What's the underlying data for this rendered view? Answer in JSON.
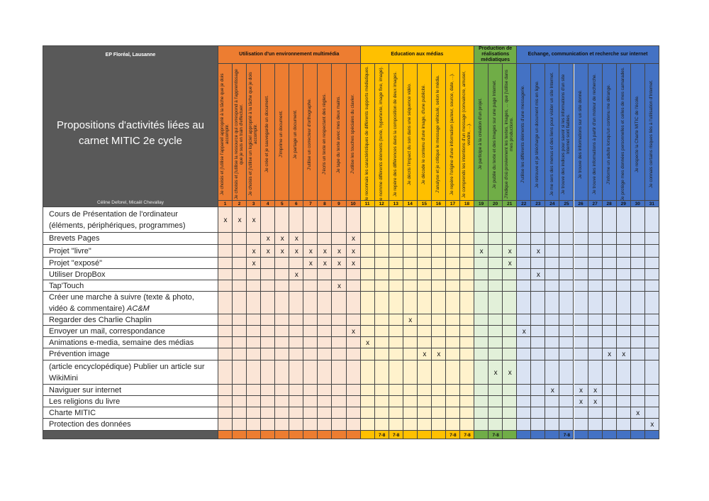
{
  "header": {
    "school": "EP Floréal, Lausanne",
    "title": "Propositions d'activités liées au carnet MITIC 2e cycle",
    "authors": "Céline Deforel, Micaël Chevallay"
  },
  "mark": "x",
  "groups": [
    {
      "label": "Utilisation d'un environnement multimédia",
      "color": "#ed7d31",
      "light_color": "#fbe5d6",
      "competences": [
        {
          "number": 1,
          "text": "Je choisis et j'utilise l'appareil approprié à la tâche que je dois accomplir."
        },
        {
          "number": 2,
          "text": "Je choisis et j'utilise la ressource qui correspond à l'apprentissage que je suis en train d'effectuer."
        },
        {
          "number": 3,
          "text": "Je choisis et j'utilise un logiciel approprié à la tâche que je dois accomplir."
        },
        {
          "number": 4,
          "text": "Je crée et je sauvegarde un document."
        },
        {
          "number": 5,
          "text": "J'imprime un document."
        },
        {
          "number": 6,
          "text": "Je partage un document."
        },
        {
          "number": 7,
          "text": "J'utilise un correcteur d'orthographe."
        },
        {
          "number": 8,
          "text": "J'écris un texte en respectant des règles."
        },
        {
          "number": 9,
          "text": "Je tape du texte avec mes deux mains."
        },
        {
          "number": 10,
          "text": "J'utilise les touches spéciales du clavier."
        }
      ]
    },
    {
      "label": "Education aux médias",
      "color": "#ffc000",
      "light_color": "#fff2cc",
      "competences": [
        {
          "number": 11,
          "text": "Je reconnais les caractéristiques de différents supports médiatiques."
        },
        {
          "number": 12,
          "text": "Je nomme différents éléments (texte, hypertexte, image fixe, image)."
        },
        {
          "number": 13,
          "text": "Je repère des différences dans la composition de deux images."
        },
        {
          "number": 14,
          "text": "Je décris l'impact du son dans une séquence vidéo."
        },
        {
          "number": 15,
          "text": "Je décode le contenu d'une image, d'une publicité."
        },
        {
          "number": 16,
          "text": "J'analyse et je critique le message véhiculé, selon le média."
        },
        {
          "number": 17,
          "text": "Je repère l'origine d'une information (auteur, source, date, ...)."
        },
        {
          "number": 18,
          "text": "Je comprends les intentions d'un message (convaincre, amuser, vendre, ...)."
        }
      ]
    },
    {
      "label": "Production de réalisations médiatiques",
      "color": "#70ad47",
      "light_color": "#e2f0d9",
      "competences": [
        {
          "number": 19,
          "text": "Je participe à la création d'un projet."
        },
        {
          "number": 20,
          "text": "Je publie du texte et des images sur une page Internet."
        },
        {
          "number": 21,
          "text": "J'indique d'où proviennent les textes, images, ... que j'utilise dans mes productions."
        }
      ]
    },
    {
      "label": "Echange, communication et recherche sur internet",
      "color": "#4472c4",
      "light_color": "#dae3f3",
      "competences": [
        {
          "number": 22,
          "text": "J'utilise les différents éléments d'une messagerie."
        },
        {
          "number": 23,
          "text": "Je retrouve et je télécharge un document mis en ligne."
        },
        {
          "number": 24,
          "text": "Je me sers des menus et des liens pour visiter un site Internet."
        },
        {
          "number": 25,
          "text": "Je trouve des indices pour savoir si les informations d'un site Internet sont fiables."
        },
        {
          "number": 26,
          "text": "Je trouve des informations sur un site donné."
        },
        {
          "number": 27,
          "text": "Je trouve des informations à partir d'un moteur de recherche."
        },
        {
          "number": 28,
          "text": "J'informe un adulte lorsqu'un contenu me dérange."
        },
        {
          "number": 29,
          "text": "Je protège mes données personnelles et celles de mes camarades."
        },
        {
          "number": 30,
          "text": "Je respecte la Charte MITIC de l'école."
        },
        {
          "number": 31,
          "text": "Je connais certains risques liés à l'utilisation d'Internet."
        }
      ]
    }
  ],
  "activities": [
    {
      "label": "Cours de Présentation de l'ordinateur (éléments, périphériques, programmes)",
      "checked": [
        1,
        2,
        3
      ]
    },
    {
      "label": "Brevets Pages",
      "checked": [
        4,
        5,
        6,
        10
      ]
    },
    {
      "label": "Projet \"livre\"",
      "checked": [
        3,
        4,
        5,
        6,
        7,
        8,
        9,
        10,
        19,
        21,
        23
      ]
    },
    {
      "label": "Projet \"exposé\"",
      "checked": [
        3,
        7,
        8,
        9,
        10,
        21
      ]
    },
    {
      "label": "Utiliser DropBox",
      "checked": [
        6,
        23
      ]
    },
    {
      "label": "Tap'Touch",
      "checked": [
        9
      ]
    },
    {
      "label": "Créer une marche à suivre (texte & photo, vidéo & commentaire)",
      "label_italic": "AC&M",
      "checked": []
    },
    {
      "label": "Regarder des Charlie Chaplin",
      "checked": [
        14
      ]
    },
    {
      "label": "Envoyer un mail, correspondance",
      "checked": [
        10,
        22
      ]
    },
    {
      "label": "Animations e-media, semaine des médias",
      "checked": [
        11
      ]
    },
    {
      "label": "Prévention image",
      "checked": [
        15,
        16,
        28,
        29
      ]
    },
    {
      "label": "(article encyclopédique) Publier un article sur WikiMini",
      "checked": [
        20,
        21
      ]
    },
    {
      "label": "Naviguer sur internet",
      "checked": [
        24,
        26,
        27
      ]
    },
    {
      "label": "Les religions du livre",
      "checked": [
        26,
        27
      ]
    },
    {
      "label": "Charte MITIC",
      "checked": [
        30
      ]
    },
    {
      "label": "Protection des données",
      "checked": [
        31
      ]
    }
  ],
  "footer": [
    {
      "column": 12,
      "label": "7-8"
    },
    {
      "column": 13,
      "label": "7-8"
    },
    {
      "column": 17,
      "label": "7-8"
    },
    {
      "column": 18,
      "label": "7-8"
    },
    {
      "column": 20,
      "label": "7-8"
    },
    {
      "column": 25,
      "label": "7-8"
    }
  ]
}
